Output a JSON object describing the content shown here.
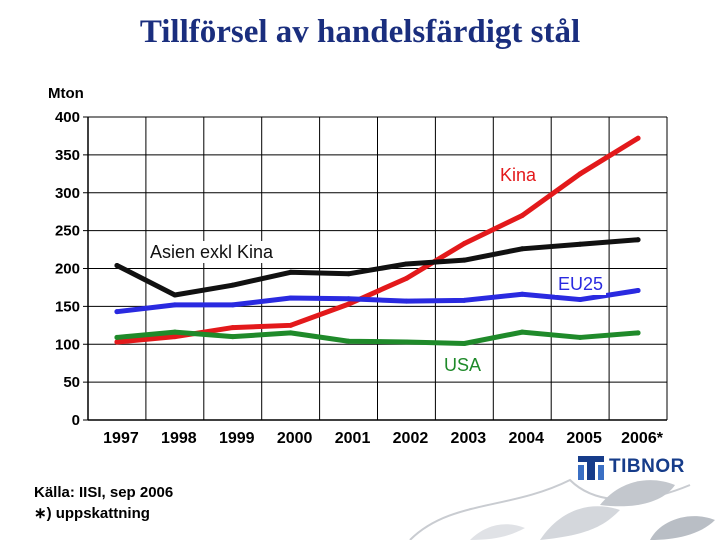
{
  "title": "Tillförsel av handelsfärdigt stål",
  "source_line": "Källa: IISI, sep 2006",
  "note_line": "∗) uppskattning",
  "logo_text": "TIBNOR",
  "colors": {
    "title": "#1a2e7e",
    "Kina": "#e3191b",
    "Asien exkl Kina": "#111111",
    "EU25": "#2a2ae0",
    "USA": "#1f8a2a",
    "grid": "#000000"
  },
  "chart_data": {
    "type": "line",
    "title": "Tillförsel av handelsfärdigt stål",
    "ylabel": "Mton",
    "xlabel": "",
    "categories": [
      "1997",
      "1998",
      "1999",
      "2000",
      "2001",
      "2002",
      "2003",
      "2004",
      "2005",
      "2006*"
    ],
    "ylim": [
      0,
      400
    ],
    "yticks": [
      0,
      50,
      100,
      150,
      200,
      250,
      300,
      350,
      400
    ],
    "grid": true,
    "series": [
      {
        "name": "Kina",
        "color": "#e3191b",
        "values": [
          103,
          110,
          122,
          125,
          153,
          187,
          233,
          270,
          325,
          372
        ]
      },
      {
        "name": "Asien exkl Kina",
        "color": "#111111",
        "values": [
          204,
          165,
          178,
          195,
          193,
          206,
          211,
          226,
          232,
          238
        ]
      },
      {
        "name": "EU25",
        "color": "#2a2ae0",
        "values": [
          143,
          152,
          152,
          161,
          160,
          157,
          158,
          166,
          159,
          171
        ]
      },
      {
        "name": "USA",
        "color": "#1f8a2a",
        "values": [
          109,
          116,
          110,
          115,
          104,
          103,
          101,
          116,
          109,
          115
        ]
      }
    ]
  }
}
